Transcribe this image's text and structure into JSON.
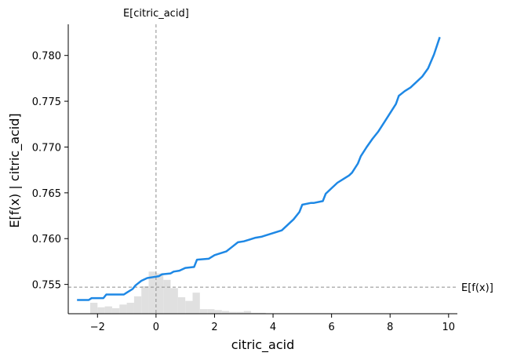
{
  "chart_data": {
    "type": "line",
    "xlabel": "citric_acid",
    "ylabel": "E[f(x) | citric_acid]",
    "xlim": [
      -3.0,
      10.3
    ],
    "ylim": [
      0.7518,
      0.7834
    ],
    "x_ticks": [
      -2,
      0,
      2,
      4,
      6,
      8,
      10
    ],
    "x_tick_labels": [
      "−2",
      "0",
      "2",
      "4",
      "6",
      "8",
      "10"
    ],
    "y_ticks": [
      0.755,
      0.76,
      0.765,
      0.77,
      0.775,
      0.78
    ],
    "y_tick_labels": [
      "0.755",
      "0.760",
      "0.765",
      "0.770",
      "0.775",
      "0.780"
    ],
    "grid": false,
    "line_color": "#1e88e5",
    "hist_color": "#e0e0e0",
    "reference_color": "#8c8c8c",
    "series": [
      {
        "x": [
          -2.7,
          -2.3,
          -2.2,
          -1.8,
          -1.7,
          -1.1,
          -1.0,
          -0.8,
          -0.7,
          -0.5,
          -0.3,
          -0.1,
          0.1,
          0.2,
          0.5,
          0.6,
          0.8,
          1.0,
          1.3,
          1.4,
          1.8,
          2.0,
          2.2,
          2.4,
          2.6,
          2.8,
          3.0,
          3.2,
          3.4,
          3.6,
          3.7,
          4.0,
          4.3,
          4.5,
          4.7,
          4.9,
          5.0,
          5.3,
          5.4,
          5.7,
          5.8,
          6.0,
          6.2,
          6.4,
          6.6,
          6.7,
          6.9,
          7.0,
          7.2,
          7.4,
          7.6,
          7.8,
          8.0,
          8.2,
          8.3,
          8.5,
          8.7,
          8.9,
          9.1,
          9.3,
          9.5,
          9.7
        ],
        "y": [
          0.7533,
          0.7533,
          0.7535,
          0.7535,
          0.7539,
          0.7539,
          0.7541,
          0.7545,
          0.7549,
          0.7554,
          0.7557,
          0.7558,
          0.7559,
          0.7561,
          0.7562,
          0.7564,
          0.7565,
          0.7568,
          0.7569,
          0.7577,
          0.7578,
          0.7582,
          0.7584,
          0.7586,
          0.7591,
          0.7596,
          0.7597,
          0.7599,
          0.7601,
          0.7602,
          0.7603,
          0.7606,
          0.7609,
          0.7615,
          0.7621,
          0.7629,
          0.7637,
          0.7639,
          0.7639,
          0.7641,
          0.7649,
          0.7655,
          0.7661,
          0.7665,
          0.7669,
          0.7672,
          0.7682,
          0.769,
          0.77,
          0.7709,
          0.7717,
          0.7727,
          0.7737,
          0.7747,
          0.7756,
          0.7761,
          0.7765,
          0.7771,
          0.7777,
          0.7786,
          0.7801,
          0.782
        ]
      }
    ],
    "histogram": {
      "bins": [
        -2.25,
        -2.0,
        -1.75,
        -1.5,
        -1.25,
        -1.0,
        -0.75,
        -0.5,
        -0.25,
        0.0,
        0.25,
        0.5,
        0.75,
        1.0,
        1.25,
        1.5,
        1.75,
        2.0,
        2.25,
        2.5,
        2.75,
        3.0,
        3.25,
        3.5
      ],
      "tops": [
        0.753,
        0.7525,
        0.7526,
        0.7524,
        0.7528,
        0.753,
        0.7537,
        0.7548,
        0.7564,
        0.7562,
        0.7555,
        0.7546,
        0.7536,
        0.7532,
        0.7541,
        0.7523,
        0.7523,
        0.7522,
        0.7521,
        0.752,
        0.752,
        0.7521,
        0.7519,
        0.7519
      ]
    },
    "reference_lines": {
      "vertical": {
        "x": 0.0,
        "label": "E[citric_acid]"
      },
      "horizontal": {
        "y": 0.7547,
        "label": "E[f(x)]"
      }
    }
  }
}
